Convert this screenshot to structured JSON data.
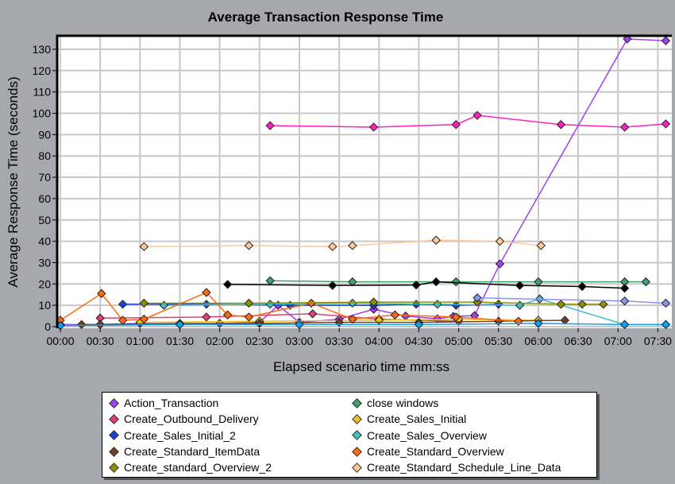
{
  "chart_data": {
    "type": "line",
    "title": "Average Transaction Response Time",
    "xlabel": "Elapsed scenario time mm:ss",
    "ylabel": "Average Response Time (seconds)",
    "x_unit": "seconds",
    "xlim": [
      0,
      460
    ],
    "ylim": [
      0,
      135
    ],
    "grid": true,
    "legend_placement": "bottom",
    "x_ticks": [
      {
        "v": 0,
        "label": "00:00"
      },
      {
        "v": 30,
        "label": "00:30"
      },
      {
        "v": 60,
        "label": "01:00"
      },
      {
        "v": 90,
        "label": "01:30"
      },
      {
        "v": 120,
        "label": "02:00"
      },
      {
        "v": 150,
        "label": "02:30"
      },
      {
        "v": 180,
        "label": "03:00"
      },
      {
        "v": 210,
        "label": "03:30"
      },
      {
        "v": 240,
        "label": "04:00"
      },
      {
        "v": 270,
        "label": "04:30"
      },
      {
        "v": 300,
        "label": "05:00"
      },
      {
        "v": 330,
        "label": "05:30"
      },
      {
        "v": 360,
        "label": "06:00"
      },
      {
        "v": 390,
        "label": "06:30"
      },
      {
        "v": 420,
        "label": "07:00"
      },
      {
        "v": 450,
        "label": "07:30"
      }
    ],
    "y_ticks": [
      "0",
      "10",
      "20",
      "30",
      "40",
      "50",
      "60",
      "70",
      "80",
      "90",
      "100",
      "110",
      "120",
      "130"
    ],
    "series": [
      {
        "name": "Action_Transaction",
        "legend": true,
        "color": "#a040f0",
        "x": [
          0,
          30,
          60,
          90,
          120,
          150,
          164,
          180,
          210,
          236,
          260,
          284,
          296,
          312,
          331,
          427,
          456
        ],
        "y": [
          1,
          1,
          1.5,
          1,
          1.5,
          2,
          10,
          2,
          3.5,
          8.2,
          5,
          3.7,
          4.8,
          5.2,
          29.4,
          134.8,
          134
        ]
      },
      {
        "name": "close windows",
        "legend": true,
        "color": "#40a070",
        "x": [
          158,
          220,
          298,
          360,
          425,
          441
        ],
        "y": [
          21.5,
          21,
          21,
          21,
          21,
          21
        ]
      },
      {
        "name": "Create_Outbound_Delivery",
        "legend": true,
        "color": "#e04070",
        "x": [
          30,
          110,
          190,
          240,
          300
        ],
        "y": [
          4,
          4.5,
          6,
          3.5,
          2.5
        ]
      },
      {
        "name": "Create_Sales_Initial",
        "legend": true,
        "color": "#f0c020",
        "x": [
          60,
          150,
          240,
          300,
          360
        ],
        "y": [
          2,
          2.5,
          3,
          3.5,
          3
        ]
      },
      {
        "name": "Create_Sales_Initial_2",
        "legend": true,
        "color": "#2040d0",
        "x": [
          47,
          110,
          173,
          236,
          268,
          298,
          330
        ],
        "y": [
          10.5,
          10.5,
          10,
          10,
          10.5,
          10,
          10.5
        ]
      },
      {
        "name": "Create_Sales_Overview",
        "legend": true,
        "color": "#40c0c0",
        "x": [
          78,
          158,
          220,
          284,
          346,
          361,
          425,
          456
        ],
        "y": [
          10,
          10.5,
          11,
          10.5,
          10,
          13,
          1,
          1
        ]
      },
      {
        "name": "Create_Standard_ItemData",
        "legend": true,
        "color": "#704020",
        "x": [
          16,
          30,
          90,
          150,
          210,
          270,
          330,
          380
        ],
        "y": [
          1,
          1,
          1.5,
          1.5,
          2,
          2,
          2.5,
          3
        ]
      },
      {
        "name": "Create_Standard_Overview",
        "legend": true,
        "color": "#ff6a10",
        "x": [
          0,
          31,
          47,
          63,
          110,
          126,
          142,
          189,
          220,
          252,
          298,
          345
        ],
        "y": [
          3,
          15.5,
          3,
          3.5,
          16,
          5.5,
          4.5,
          11,
          3.5,
          5.5,
          4.5,
          2.5
        ]
      },
      {
        "name": "Create_standard_Overview_2",
        "legend": true,
        "color": "#909000",
        "x": [
          63,
          142,
          236,
          314,
          377,
          393,
          409
        ],
        "y": [
          11,
          11,
          11.5,
          11.5,
          10.5,
          10.5,
          10.5
        ]
      },
      {
        "name": "Create_Standard_Schedule_Line_Data",
        "legend": true,
        "color": "#ffc898",
        "x": [
          63,
          142,
          205,
          220,
          283,
          331,
          362
        ],
        "y": [
          37.5,
          38,
          37.5,
          38,
          40.5,
          40,
          38
        ]
      },
      {
        "name": "",
        "legend": false,
        "color": "#ff20c0",
        "x": [
          158,
          236,
          298,
          314,
          377,
          425,
          456
        ],
        "y": [
          94.2,
          93.5,
          94.7,
          99,
          94.7,
          93.5,
          95
        ]
      },
      {
        "name": "",
        "legend": false,
        "color": "#000000",
        "x": [
          126,
          205,
          268,
          283,
          346,
          393,
          425
        ],
        "y": [
          19.8,
          19.3,
          19.5,
          21,
          19.3,
          18.8,
          18
        ]
      },
      {
        "name": "",
        "legend": false,
        "color": "#9090f0",
        "x": [
          314,
          425,
          456
        ],
        "y": [
          13.5,
          12,
          11
        ]
      },
      {
        "name": "",
        "legend": false,
        "color": "#10a0f0",
        "x": [
          0,
          90,
          180,
          270,
          360,
          425,
          456
        ],
        "y": [
          0.5,
          1,
          1,
          1,
          1.5,
          1,
          1
        ]
      }
    ]
  }
}
